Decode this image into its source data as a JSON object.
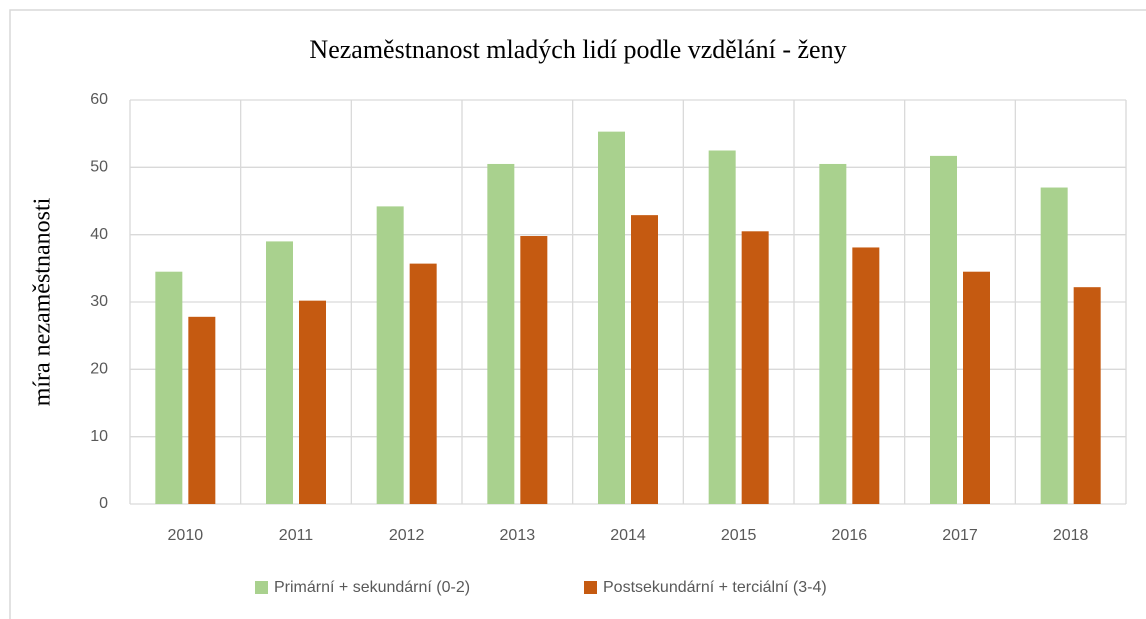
{
  "chart_data": {
    "type": "bar",
    "title": "Nezaměstnanost mladých lidí podle vzdělání - ženy",
    "ylabel": "míra nezaměstnanosti",
    "categories": [
      "2010",
      "2011",
      "2012",
      "2013",
      "2014",
      "2015",
      "2016",
      "2017",
      "2018"
    ],
    "series": [
      {
        "name": "Primární + sekundární (0-2)",
        "color": "#a9d18e",
        "values": [
          34.5,
          39,
          44.2,
          50.5,
          55.3,
          52.5,
          50.5,
          51.7,
          47
        ]
      },
      {
        "name": "Postsekundární + terciální (3-4)",
        "color": "#c55a11",
        "values": [
          27.8,
          30.2,
          35.7,
          39.8,
          42.9,
          40.5,
          38.1,
          34.5,
          32.2
        ]
      }
    ],
    "ylim": [
      0,
      60
    ],
    "yticks": [
      0,
      10,
      20,
      30,
      40,
      50,
      60
    ],
    "grid": true,
    "legend": "bottom"
  }
}
